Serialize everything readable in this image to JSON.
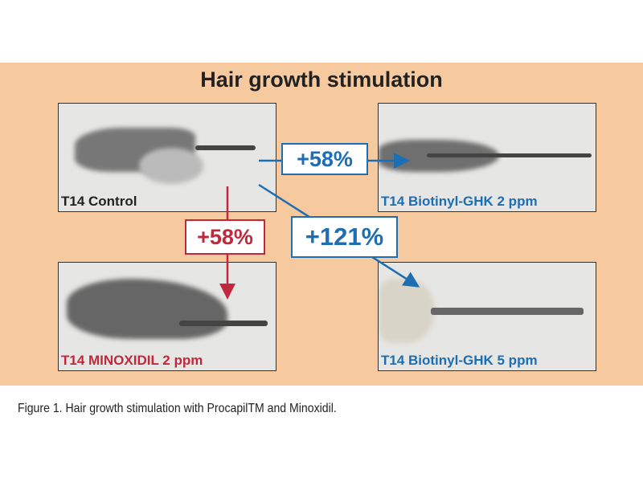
{
  "title": "Hair growth stimulation",
  "panels": {
    "control": "T14 Control",
    "biotinyl_2": "T14 Biotinyl-GHK 2 ppm",
    "minoxidil": "T14 MINOXIDIL 2 ppm",
    "biotinyl_5": "T14 Biotinyl-GHK 5 ppm"
  },
  "changes": {
    "biotinyl_2": "+58%",
    "minoxidil": "+58%",
    "biotinyl_5": "+121%"
  },
  "colors": {
    "blue": "#1e6eb4",
    "red": "#c0283c",
    "background": "#f7c99f"
  },
  "caption": "Figure 1. Hair growth stimulation with ProcapilTM and Minoxidil."
}
